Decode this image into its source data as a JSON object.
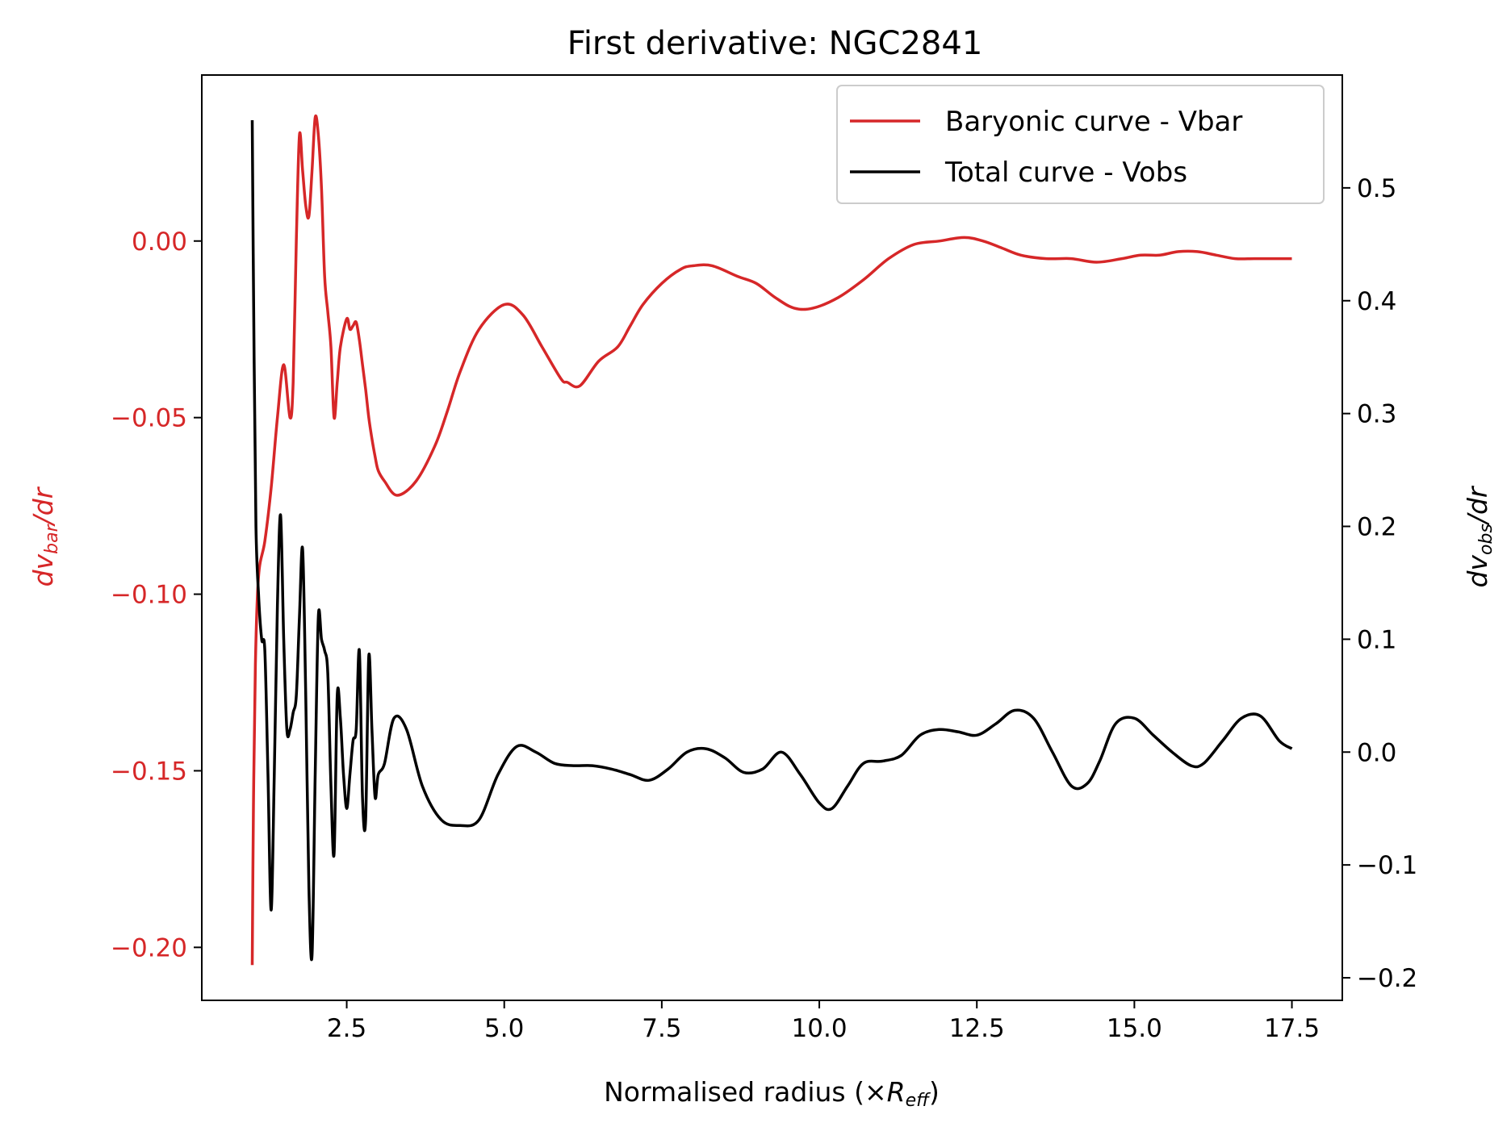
{
  "chart_data": {
    "type": "line",
    "title": "First derivative: NGC2841",
    "xlabel": "Normalised radius (×R_eff)",
    "xlabel_main": "Normalised radius (×",
    "xlabel_var": "R",
    "xlabel_sub": "eff",
    "xlabel_close": ")",
    "ylabel_left": "dv_bar/dr",
    "ylabel_left_parts": {
      "pre": "dv",
      "sub": "bar",
      "post": "/dr"
    },
    "ylabel_right": "dv_obs/dr",
    "ylabel_right_parts": {
      "pre": "dv",
      "sub": "obs",
      "post": "/dr"
    },
    "xlim": [
      0.2,
      18.3
    ],
    "ylim_left": [
      -0.215,
      0.047
    ],
    "ylim_right": [
      -0.22,
      0.6
    ],
    "xticks": [
      "2.5",
      "5.0",
      "7.5",
      "10.0",
      "12.5",
      "15.0",
      "17.5"
    ],
    "yticks_left": [
      "0.00",
      "−0.05",
      "−0.10",
      "−0.15",
      "−0.20"
    ],
    "yticks_right": [
      "0.5",
      "0.4",
      "0.3",
      "0.2",
      "0.1",
      "0.0",
      "−0.1",
      "−0.2"
    ],
    "grid": false,
    "legend_position": "top-right",
    "series": [
      {
        "name": "Baryonic curve - Vbar",
        "axis": "left",
        "color": "#d62728",
        "x": [
          1.0,
          1.02,
          1.05,
          1.1,
          1.2,
          1.3,
          1.4,
          1.5,
          1.6,
          1.65,
          1.7,
          1.75,
          1.8,
          1.85,
          1.9,
          1.95,
          2.0,
          2.05,
          2.1,
          2.15,
          2.2,
          2.25,
          2.3,
          2.35,
          2.4,
          2.5,
          2.55,
          2.6,
          2.65,
          2.7,
          2.75,
          2.8,
          2.85,
          2.9,
          2.95,
          3.0,
          3.1,
          3.3,
          3.6,
          3.9,
          4.1,
          4.3,
          4.6,
          5.0,
          5.3,
          5.6,
          5.9,
          6.0,
          6.2,
          6.5,
          6.8,
          7.0,
          7.2,
          7.5,
          7.8,
          8.0,
          8.3,
          8.7,
          9.0,
          9.3,
          9.6,
          9.9,
          10.3,
          10.7,
          11.1,
          11.5,
          11.9,
          12.3,
          12.6,
          12.9,
          13.2,
          13.6,
          14.0,
          14.4,
          14.8,
          15.1,
          15.4,
          15.7,
          16.0,
          16.3,
          16.6,
          16.9,
          17.2,
          17.5
        ],
        "values": [
          -0.205,
          -0.16,
          -0.12,
          -0.095,
          -0.085,
          -0.07,
          -0.05,
          -0.035,
          -0.05,
          -0.04,
          0.0,
          0.03,
          0.02,
          0.01,
          0.007,
          0.02,
          0.035,
          0.03,
          0.015,
          -0.01,
          -0.02,
          -0.03,
          -0.05,
          -0.04,
          -0.03,
          -0.022,
          -0.025,
          -0.024,
          -0.023,
          -0.028,
          -0.035,
          -0.042,
          -0.05,
          -0.056,
          -0.061,
          -0.065,
          -0.068,
          -0.072,
          -0.068,
          -0.058,
          -0.048,
          -0.037,
          -0.025,
          -0.018,
          -0.021,
          -0.03,
          -0.039,
          -0.04,
          -0.041,
          -0.034,
          -0.03,
          -0.024,
          -0.018,
          -0.012,
          -0.008,
          -0.007,
          -0.007,
          -0.01,
          -0.012,
          -0.016,
          -0.019,
          -0.019,
          -0.016,
          -0.011,
          -0.005,
          -0.001,
          0.0,
          0.001,
          0.0,
          -0.002,
          -0.004,
          -0.005,
          -0.005,
          -0.006,
          -0.005,
          -0.004,
          -0.004,
          -0.003,
          -0.003,
          -0.004,
          -0.005,
          -0.005,
          -0.005,
          -0.005
        ]
      },
      {
        "name": "Total curve - Vobs",
        "axis": "right",
        "color": "#000000",
        "x": [
          1.0,
          1.03,
          1.06,
          1.1,
          1.15,
          1.2,
          1.25,
          1.3,
          1.35,
          1.4,
          1.45,
          1.5,
          1.55,
          1.6,
          1.65,
          1.7,
          1.75,
          1.8,
          1.85,
          1.9,
          1.95,
          2.0,
          2.05,
          2.1,
          2.15,
          2.2,
          2.25,
          2.3,
          2.35,
          2.4,
          2.45,
          2.5,
          2.55,
          2.6,
          2.65,
          2.7,
          2.75,
          2.8,
          2.85,
          2.9,
          2.95,
          3.0,
          3.1,
          3.25,
          3.45,
          3.7,
          4.0,
          4.3,
          4.6,
          4.9,
          5.2,
          5.5,
          5.8,
          6.1,
          6.4,
          6.7,
          7.0,
          7.3,
          7.6,
          7.9,
          8.2,
          8.5,
          8.8,
          9.1,
          9.4,
          9.7,
          10.0,
          10.2,
          10.45,
          10.7,
          11.0,
          11.3,
          11.6,
          11.9,
          12.2,
          12.5,
          12.8,
          13.1,
          13.4,
          13.7,
          14.0,
          14.25,
          14.45,
          14.7,
          15.0,
          15.3,
          15.6,
          15.9,
          16.1,
          16.4,
          16.7,
          17.0,
          17.3,
          17.5
        ],
        "values": [
          0.56,
          0.35,
          0.2,
          0.14,
          0.1,
          0.09,
          -0.02,
          -0.14,
          -0.02,
          0.13,
          0.21,
          0.1,
          0.02,
          0.02,
          0.035,
          0.05,
          0.12,
          0.18,
          0.05,
          -0.12,
          -0.18,
          -0.02,
          0.12,
          0.1,
          0.09,
          0.07,
          -0.03,
          -0.09,
          0.05,
          0.03,
          -0.02,
          -0.05,
          -0.02,
          0.01,
          0.02,
          0.09,
          -0.04,
          -0.06,
          0.085,
          0.02,
          -0.04,
          -0.02,
          -0.01,
          0.03,
          0.02,
          -0.03,
          -0.06,
          -0.065,
          -0.06,
          -0.02,
          0.005,
          0.0,
          -0.01,
          -0.012,
          -0.012,
          -0.015,
          -0.02,
          -0.025,
          -0.015,
          0.0,
          0.003,
          -0.005,
          -0.018,
          -0.015,
          0.0,
          -0.02,
          -0.045,
          -0.05,
          -0.03,
          -0.01,
          -0.008,
          -0.003,
          0.015,
          0.02,
          0.018,
          0.015,
          0.025,
          0.037,
          0.03,
          0.0,
          -0.03,
          -0.028,
          -0.008,
          0.025,
          0.03,
          0.015,
          0.0,
          -0.012,
          -0.01,
          0.01,
          0.03,
          0.032,
          0.01,
          0.003
        ]
      }
    ]
  }
}
